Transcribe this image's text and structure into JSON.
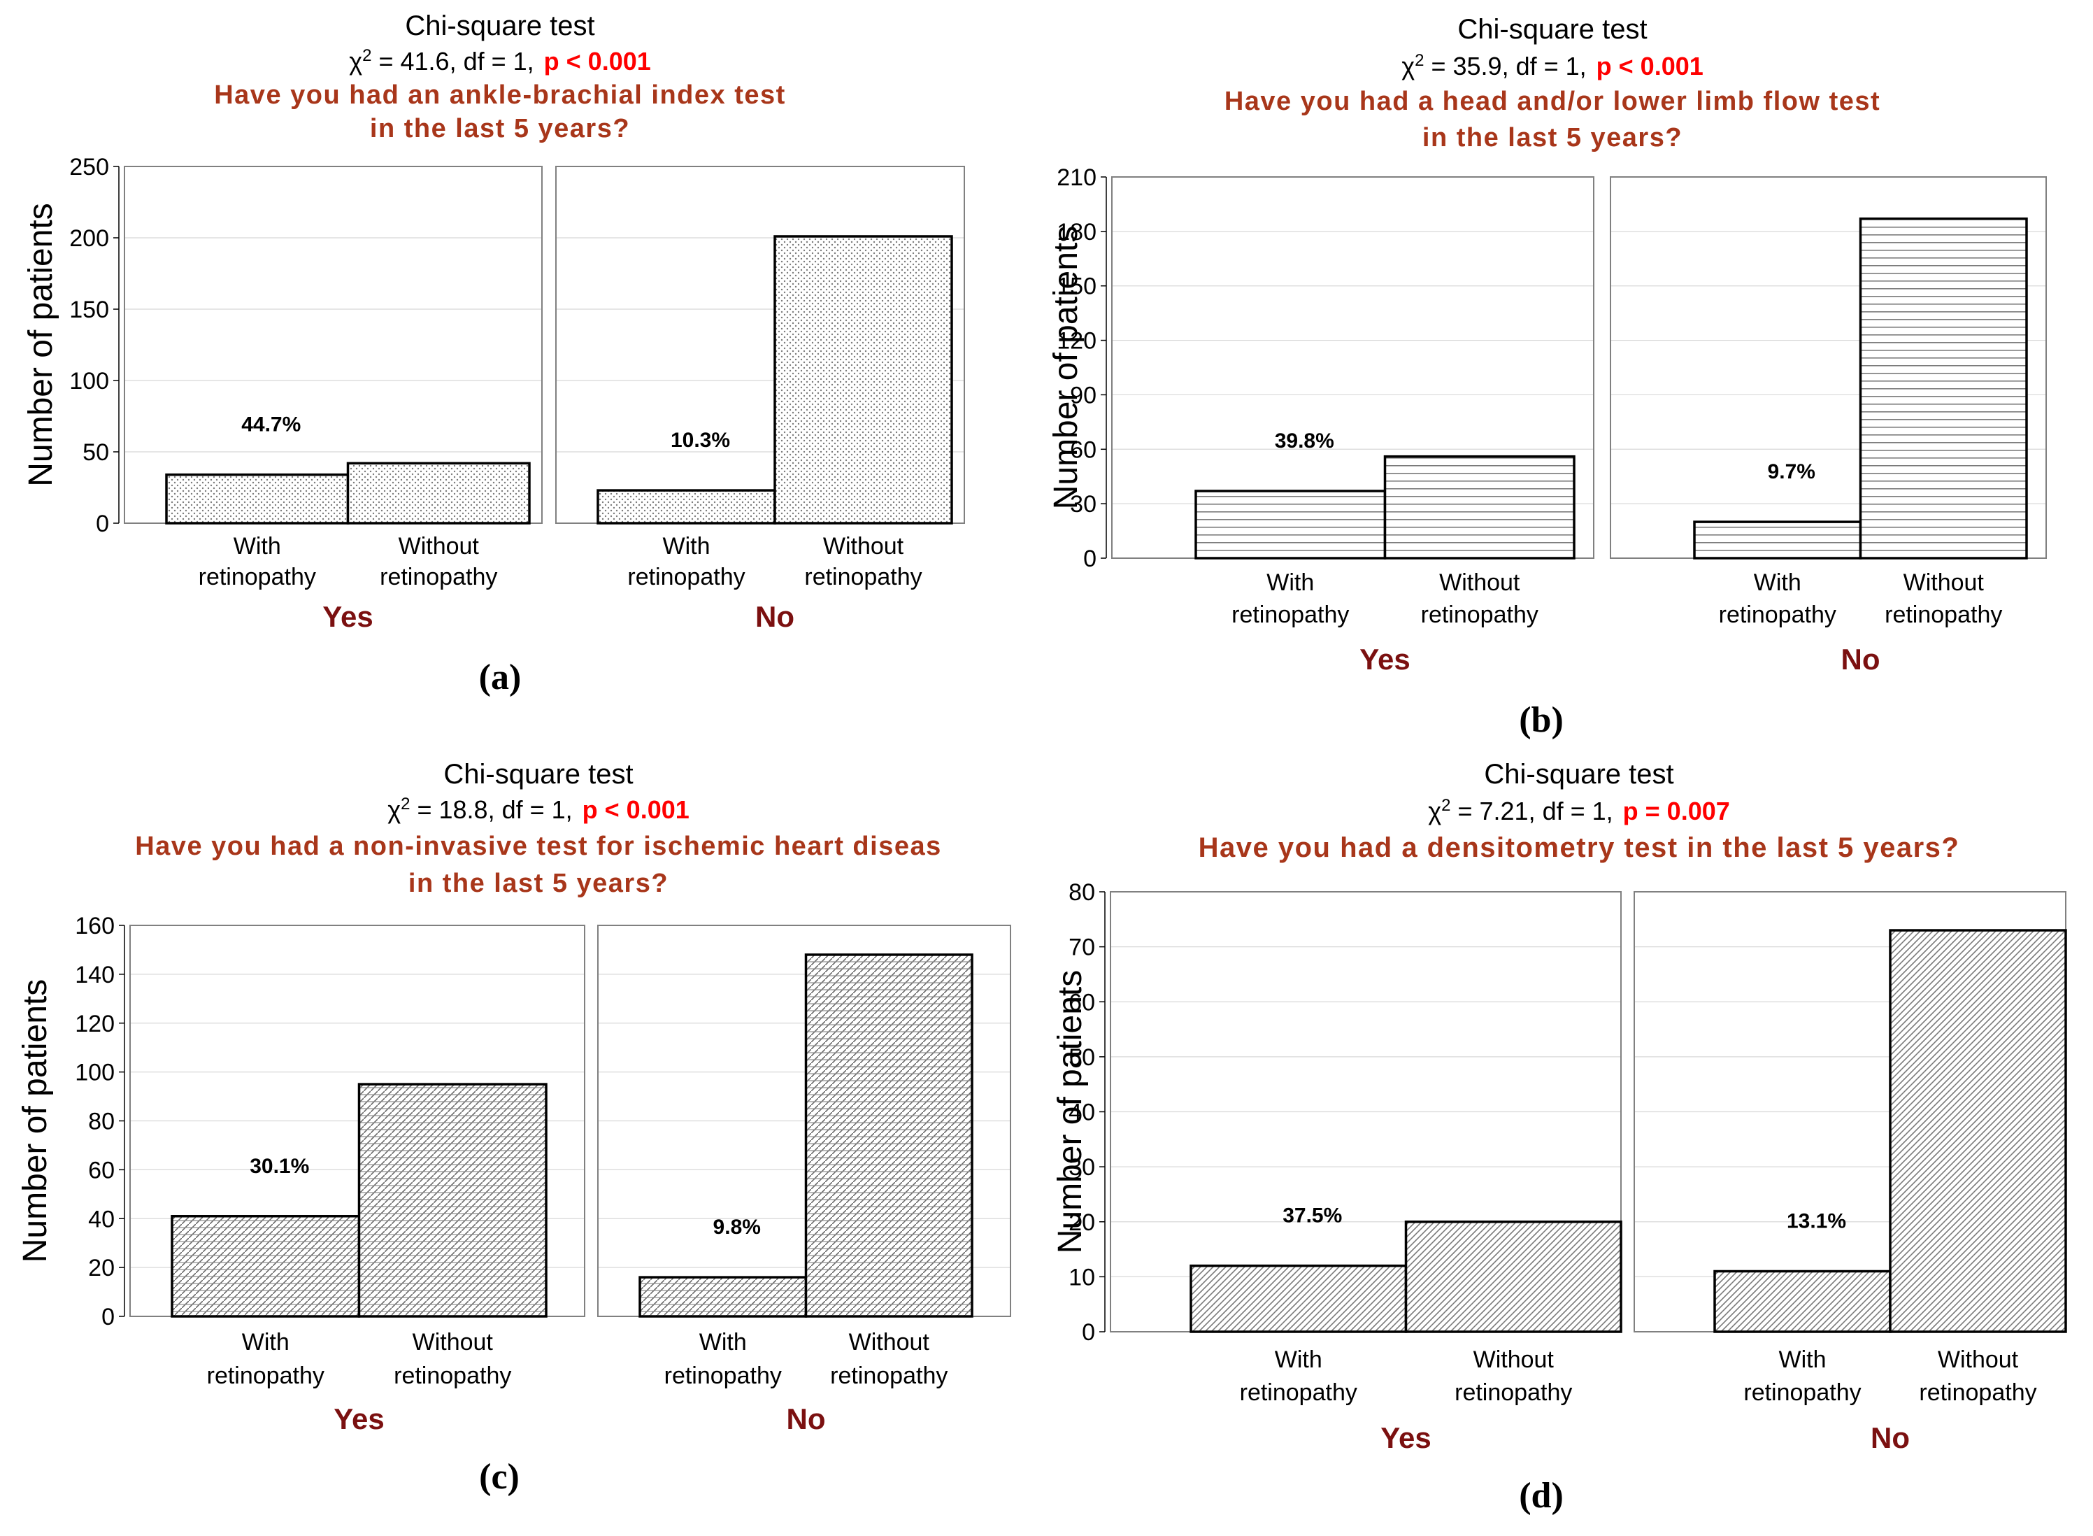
{
  "colors": {
    "question": "#A8361A",
    "group_label": "#7B1010",
    "p_value": "#FF0000",
    "text": "#000000",
    "grid": "#D8D8D8",
    "bar_stroke": "#000000",
    "frame": "#808080"
  },
  "chart_data": [
    {
      "type": "bar",
      "panel_label": "(a)",
      "test_name": "Chi-square test",
      "stat_symbol": "χ",
      "stat_exp": "2",
      "stat_rest": " = 41.6,  df = 1,",
      "p_text": "p < 0.001",
      "question_lines": [
        "Have you had an ankle-brachial index test",
        "in the last 5 years?"
      ],
      "ylabel": "Number of patients",
      "ylim": [
        0,
        250
      ],
      "yticks": [
        0,
        50,
        100,
        150,
        200,
        250
      ],
      "pattern": "dots",
      "categories": [
        [
          "With",
          "retinopathy"
        ],
        [
          "Without",
          "retinopathy"
        ]
      ],
      "groups": [
        {
          "name": "Yes",
          "values": [
            34,
            42
          ],
          "percent_label": "44.7%"
        },
        {
          "name": "No",
          "values": [
            23,
            201
          ],
          "percent_label": "10.3%"
        }
      ]
    },
    {
      "type": "bar",
      "panel_label": "(b)",
      "test_name": "Chi-square test",
      "stat_symbol": "χ",
      "stat_exp": "2",
      "stat_rest": " = 35.9,  df = 1,",
      "p_text": "p < 0.001",
      "question_lines": [
        "Have you had a head and/or lower limb flow test",
        "in the last 5 years?"
      ],
      "ylabel": "Number of patients",
      "ylim": [
        0,
        210
      ],
      "yticks": [
        0,
        30,
        60,
        90,
        120,
        150,
        180,
        210
      ],
      "pattern": "hlines",
      "categories": [
        [
          "With",
          "retinopathy"
        ],
        [
          "Without",
          "retinopathy"
        ]
      ],
      "groups": [
        {
          "name": "Yes",
          "values": [
            37,
            56
          ],
          "percent_label": "39.8%"
        },
        {
          "name": "No",
          "values": [
            20,
            187
          ],
          "percent_label": "9.7%"
        }
      ]
    },
    {
      "type": "bar",
      "panel_label": "(c)",
      "test_name": "Chi-square test",
      "stat_symbol": "χ",
      "stat_exp": "2",
      "stat_rest": " = 18.8,  df = 1,",
      "p_text": "p < 0.001",
      "question_lines": [
        "Have you had a non-invasive test for ischemic heart diseas",
        "in the last 5 years?"
      ],
      "ylabel": "Number of patients",
      "ylim": [
        0,
        160
      ],
      "yticks": [
        0,
        20,
        40,
        60,
        80,
        100,
        120,
        140,
        160
      ],
      "pattern": "dense",
      "categories": [
        [
          "With",
          "retinopathy"
        ],
        [
          "Without",
          "retinopathy"
        ]
      ],
      "groups": [
        {
          "name": "Yes",
          "values": [
            41,
            95
          ],
          "percent_label": "30.1%"
        },
        {
          "name": "No",
          "values": [
            16,
            148
          ],
          "percent_label": "9.8%"
        }
      ]
    },
    {
      "type": "bar",
      "panel_label": "(d)",
      "test_name": "Chi-square test",
      "stat_symbol": "χ",
      "stat_exp": "2",
      "stat_rest": " = 7.21,  df = 1,",
      "p_text": "p = 0.007",
      "question_lines": [
        "Have you had a densitometry test in the last 5 years?"
      ],
      "ylabel": "Number of patients",
      "ylim": [
        0,
        80
      ],
      "yticks": [
        0,
        10,
        20,
        30,
        40,
        50,
        60,
        70,
        80
      ],
      "pattern": "diagonal",
      "categories": [
        [
          "With",
          "retinopathy"
        ],
        [
          "Without",
          "retinopathy"
        ]
      ],
      "groups": [
        {
          "name": "Yes",
          "values": [
            12,
            20
          ],
          "percent_label": "37.5%"
        },
        {
          "name": "No",
          "values": [
            11,
            73
          ],
          "percent_label": "13.1%"
        }
      ]
    }
  ]
}
